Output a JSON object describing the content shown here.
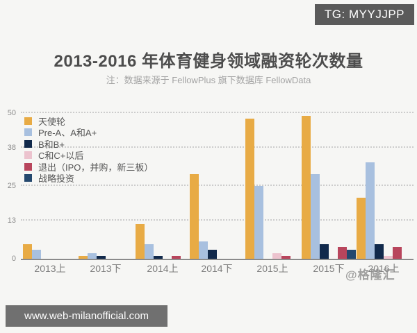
{
  "badge": {
    "text": "TG: MYYJJPP"
  },
  "header": {
    "title": "2013-2016 年体育健身领域融资轮次数量",
    "subtitle": "注：数据来源于 FellowPlus 旗下数据库 FellowData"
  },
  "watermark": {
    "text": "@格隆汇"
  },
  "footer": {
    "url": "www.web-milanofficial.com"
  },
  "colors": {
    "background": "#f6f6f4",
    "badge_bg": "#5a5a5a",
    "footer_bg": "#707070",
    "axis_line": "#8b8b8b",
    "gridline": "#cccccc"
  },
  "chart_data": {
    "type": "bar",
    "title": "2013-2016 年体育健身领域融资轮次数量",
    "subtitle": "注：数据来源于 FellowPlus 旗下数据库 FellowData",
    "categories": [
      "2013上",
      "2013下",
      "2014上",
      "2014下",
      "2015上",
      "2015下",
      "2016上"
    ],
    "series": [
      {
        "name": "天使轮",
        "color": "#E8AB45",
        "values": [
          5,
          1,
          12,
          29,
          48,
          49,
          21
        ]
      },
      {
        "name": "Pre-A、A和A+",
        "color": "#A8C0DF",
        "values": [
          3,
          2,
          5,
          6,
          25,
          29,
          33
        ]
      },
      {
        "name": "B和B+",
        "color": "#11294B",
        "values": [
          0,
          1,
          1,
          3,
          0,
          5,
          5
        ]
      },
      {
        "name": "C和C+以后",
        "color": "#ECC3CE",
        "values": [
          0,
          0,
          0,
          0,
          2,
          0,
          1
        ]
      },
      {
        "name": "退出（IPO，并购，新三板）",
        "color": "#B8455C",
        "values": [
          0,
          0,
          1,
          0,
          1,
          4,
          4
        ]
      },
      {
        "name": "战略投资",
        "color": "#24486E",
        "values": [
          0,
          0,
          0,
          0,
          0,
          3,
          0
        ]
      }
    ],
    "ylabel": "",
    "xlabel": "",
    "yticks": [
      0,
      13,
      25,
      38,
      50
    ],
    "ylim": [
      0,
      50
    ],
    "grid": "horizontal-dotted",
    "legend_position": "top-left"
  }
}
